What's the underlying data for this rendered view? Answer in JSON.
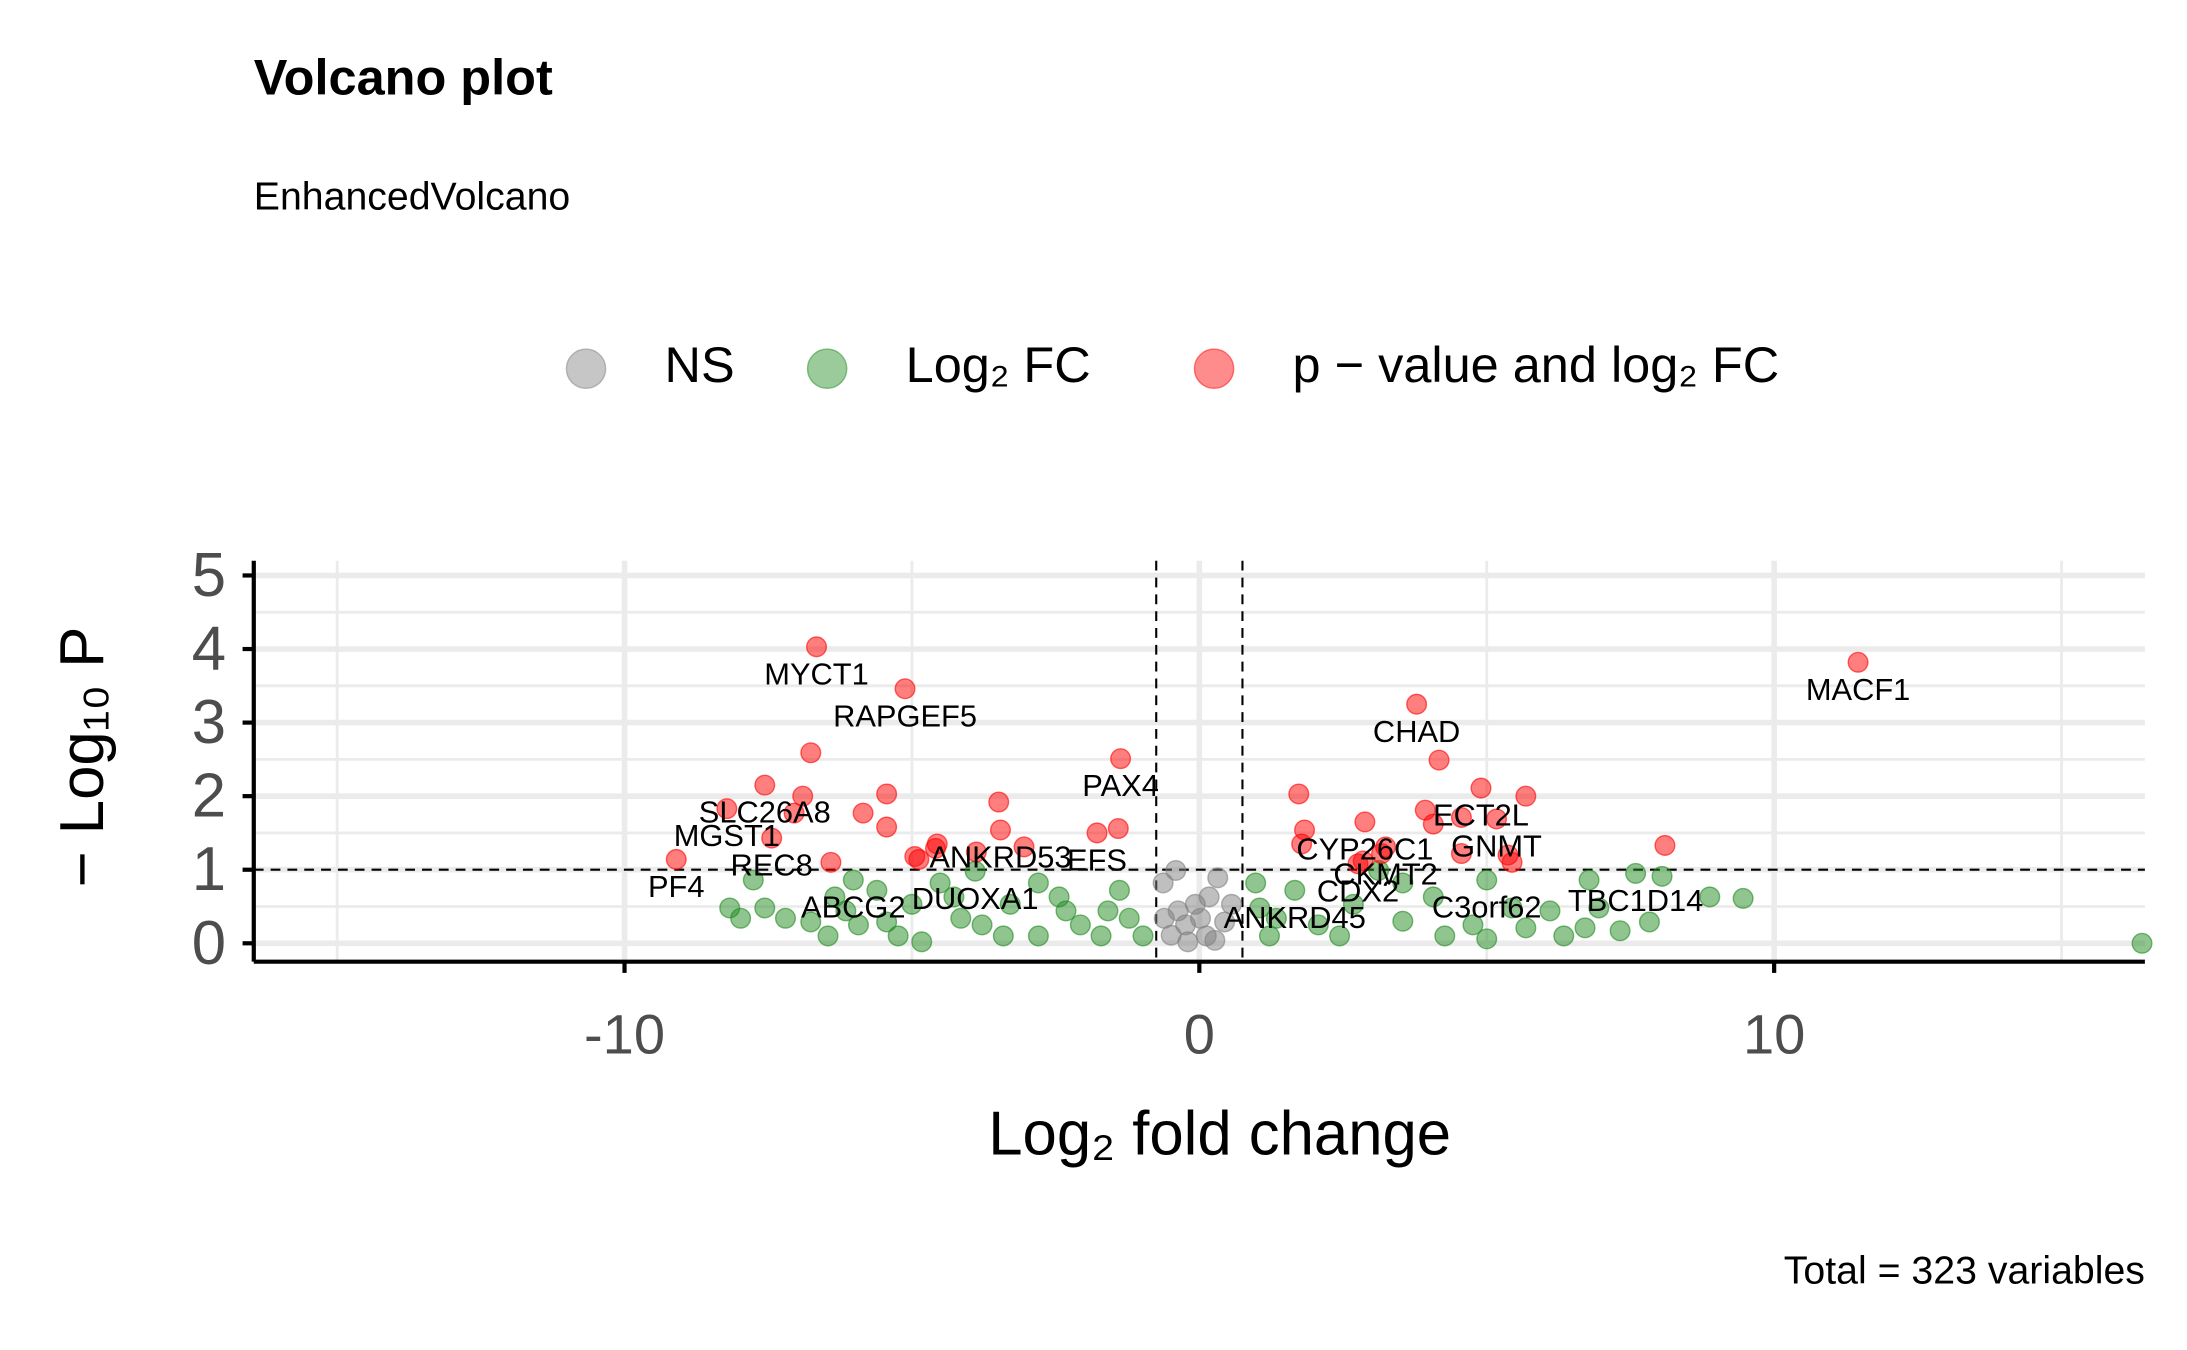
{
  "chart_data": {
    "type": "scatter",
    "title": "Volcano plot",
    "subtitle": "EnhancedVolcano",
    "xlabel": "Log₂ fold change",
    "ylabel": "− Log₁₀ P",
    "caption": "Total = 323 variables",
    "xlim": [
      -16.45,
      16.45
    ],
    "ylim": [
      -0.25,
      5.2
    ],
    "xticks": [
      -10,
      0,
      10
    ],
    "yticks": [
      0,
      1,
      2,
      3,
      4,
      5
    ],
    "grid": true,
    "legend": "top",
    "vlines": [
      -0.75,
      0.75
    ],
    "hline": 1,
    "series": [
      {
        "name": "NS",
        "color": "#808080",
        "x": [
          -0.41,
          -0.63,
          0.32,
          -0.07,
          -0.24,
          0.12,
          -0.49,
          0.44,
          -0.37,
          0.02,
          0.27,
          -0.2,
          0.56,
          -0.61,
          0.17
        ],
        "y": [
          0.99,
          0.82,
          0.89,
          0.53,
          0.25,
          0.1,
          0.11,
          0.29,
          0.44,
          0.34,
          0.04,
          0.02,
          0.53,
          0.34,
          0.63
        ]
      },
      {
        "name": "Log₂ FC",
        "color": "#228B22",
        "x": [
          16.4,
          9.46,
          8.88,
          7.83,
          7.59,
          6.78,
          6.95,
          6.71,
          6.1,
          5.68,
          5.0,
          5.44,
          4.76,
          4.07,
          3.54,
          3.12,
          2.68,
          2.07,
          1.66,
          1.22,
          1.05,
          0.98,
          1.34,
          2.44,
          4.27,
          6.34,
          7.32,
          8.05,
          3.54,
          5.0,
          -8.17,
          -7.98,
          -7.76,
          -7.56,
          -7.2,
          -6.76,
          -6.34,
          -6.15,
          -5.93,
          -5.61,
          -5.24,
          -4.83,
          -5.0,
          -4.51,
          -4.15,
          -3.9,
          -3.78,
          -3.29,
          -2.8,
          -2.44,
          -2.07,
          -1.71,
          -1.39,
          -1.22,
          -0.98,
          -6.02,
          -3.41,
          -4.27,
          -2.32,
          -1.59,
          -2.8,
          -6.46,
          -5.44
        ],
        "y": [
          0.0,
          0.61,
          0.63,
          0.29,
          0.95,
          0.86,
          0.48,
          0.21,
          0.44,
          0.21,
          0.86,
          0.48,
          0.25,
          0.63,
          0.3,
          0.99,
          0.53,
          0.25,
          0.72,
          0.1,
          0.48,
          0.82,
          0.34,
          0.1,
          0.1,
          0.1,
          0.17,
          0.91,
          0.82,
          0.06,
          0.48,
          0.34,
          0.86,
          0.48,
          0.34,
          0.29,
          0.63,
          0.44,
          0.25,
          0.72,
          0.1,
          0.02,
          0.53,
          0.82,
          0.34,
          0.98,
          0.25,
          0.53,
          0.1,
          0.63,
          0.25,
          0.1,
          0.72,
          0.34,
          0.1,
          0.86,
          0.1,
          0.63,
          0.44,
          0.44,
          0.82,
          0.1,
          0.29
        ],
        "labels": [
          null,
          null,
          null,
          null,
          "TBC1D14",
          null,
          null,
          null,
          null,
          null,
          "C3orf62",
          null,
          null,
          null,
          null,
          null,
          null,
          null,
          "ANKRD45",
          null,
          null,
          null,
          null,
          null,
          null,
          null,
          null,
          null,
          null,
          null,
          null,
          null,
          null,
          null,
          null,
          null,
          null,
          null,
          null,
          null,
          null,
          null,
          null,
          null,
          null,
          "DUOXA1",
          null,
          null,
          null,
          null,
          null,
          null,
          null,
          null,
          null,
          "ABCG2",
          null,
          null,
          null,
          null,
          null,
          null,
          null
        ]
      },
      {
        "name": "p − value  and  log₂ FC",
        "color": "#FF0000",
        "x": [
          -6.66,
          -5.12,
          -6.76,
          -7.56,
          -6.9,
          -5.44,
          -8.22,
          -7.05,
          -5.85,
          -5.44,
          -7.44,
          -6.41,
          -9.1,
          -4.95,
          -4.88,
          -4.59,
          -4.56,
          -3.88,
          -3.49,
          -3.46,
          -3.05,
          -1.78,
          -1.41,
          -1.37,
          3.78,
          4.17,
          1.73,
          4.9,
          5.68,
          3.93,
          4.07,
          4.56,
          5.17,
          2.88,
          1.83,
          1.78,
          3.24,
          3.17,
          2.76,
          2.85,
          4.56,
          5.37,
          5.44,
          8.1,
          11.46
        ],
        "y": [
          4.03,
          3.46,
          2.59,
          2.15,
          2.0,
          2.03,
          1.83,
          1.77,
          1.77,
          1.58,
          1.43,
          1.1,
          1.14,
          1.18,
          1.14,
          1.29,
          1.35,
          1.24,
          1.92,
          1.54,
          1.31,
          1.5,
          1.56,
          2.51,
          3.25,
          2.49,
          2.03,
          2.11,
          2.0,
          1.81,
          1.62,
          1.71,
          1.69,
          1.65,
          1.54,
          1.35,
          1.31,
          1.22,
          1.08,
          1.12,
          1.22,
          1.2,
          1.1,
          1.33,
          3.82
        ],
        "labels": [
          "MYCT1",
          "RAPGEF5",
          null,
          "SLC26A8",
          null,
          null,
          "MGST1",
          null,
          null,
          null,
          "REC8",
          null,
          "PF4",
          null,
          null,
          null,
          null,
          null,
          null,
          "ANKRD53",
          null,
          "EFS",
          null,
          "PAX4",
          "CHAD",
          null,
          null,
          "ECT2L",
          null,
          null,
          null,
          null,
          "GNMT",
          "CYP26C1",
          null,
          null,
          "CKMT2",
          null,
          "CDX2",
          null,
          null,
          null,
          null,
          null,
          "MACF1"
        ]
      }
    ]
  }
}
